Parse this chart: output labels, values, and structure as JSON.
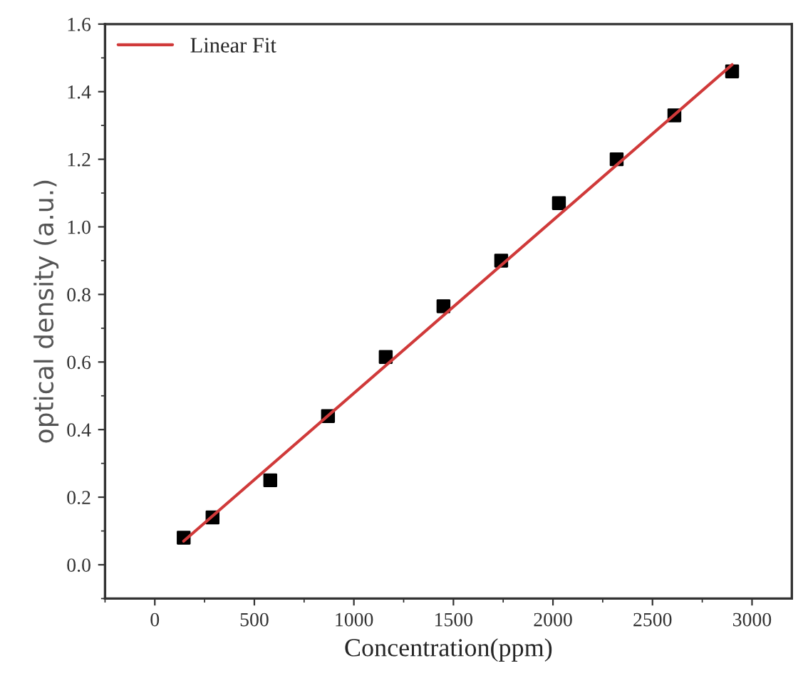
{
  "chart_data": {
    "type": "scatter",
    "xlabel": "Concentration(ppm)",
    "ylabel": "optical density (a.u.)",
    "xlim": [
      -250,
      3200
    ],
    "ylim": [
      -0.1,
      1.6
    ],
    "xticks": [
      0,
      500,
      1000,
      1500,
      2000,
      2500,
      3000
    ],
    "yticks": [
      {
        "value": 0,
        "label": "0.0"
      },
      {
        "value": 0.2,
        "label": "0.2"
      },
      {
        "value": 0.4,
        "label": "0.4"
      },
      {
        "value": 0.6,
        "label": "0.6"
      },
      {
        "value": 0.8,
        "label": "0.8"
      },
      {
        "value": 1.0,
        "label": "1.0"
      },
      {
        "value": 1.2,
        "label": "1.2"
      },
      {
        "value": 1.4,
        "label": "1.4"
      },
      {
        "value": 1.6,
        "label": "1.6"
      }
    ],
    "grid": false,
    "legend": "top left",
    "series": [
      {
        "marker": "square",
        "color": "#000000",
        "x": [
          145,
          290,
          580,
          870,
          1160,
          1450,
          1740,
          2030,
          2320,
          2610,
          2900
        ],
        "values": [
          0.08,
          0.14,
          0.25,
          0.44,
          0.615,
          0.765,
          0.9,
          1.07,
          1.2,
          1.33,
          1.46
        ]
      },
      {
        "type": "line",
        "marker": "none",
        "name": "Linear Fit",
        "color": "#d03a3a",
        "x": [
          145,
          2900
        ],
        "values": [
          0.07,
          1.48
        ]
      }
    ]
  }
}
